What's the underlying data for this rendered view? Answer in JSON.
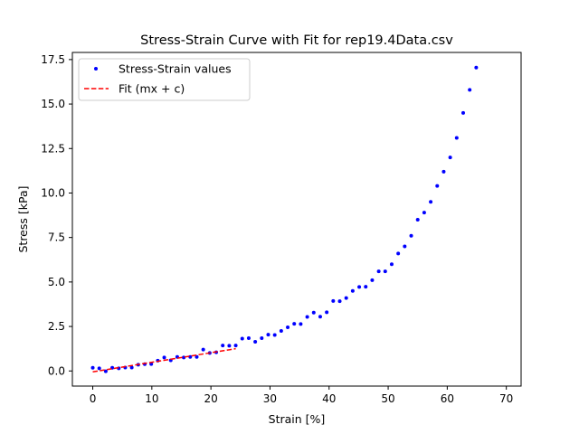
{
  "chart_data": {
    "type": "scatter",
    "title": "Stress-Strain Curve with Fit for rep19.4Data.csv",
    "xlabel": "Strain [%]",
    "ylabel": "Stress [kPa]",
    "xlim": [
      -3.45,
      72.5
    ],
    "ylim": [
      -0.85,
      17.9
    ],
    "x_ticks": [
      0,
      10,
      20,
      30,
      40,
      50,
      60,
      70
    ],
    "y_ticks": [
      0.0,
      2.5,
      5.0,
      7.5,
      10.0,
      12.5,
      15.0,
      17.5
    ],
    "x_tick_labels": [
      "0",
      "10",
      "20",
      "30",
      "40",
      "50",
      "60",
      "70"
    ],
    "y_tick_labels": [
      "0.0",
      "2.5",
      "5.0",
      "7.5",
      "10.0",
      "12.5",
      "15.0",
      "17.5"
    ],
    "grid": false,
    "legend_position": "top-left",
    "series": [
      {
        "name": "Stress-Strain values",
        "style": "points",
        "color": "#0000ff",
        "points": [
          [
            0.0,
            0.18
          ],
          [
            1.1,
            0.15
          ],
          [
            2.2,
            -0.02
          ],
          [
            3.3,
            0.18
          ],
          [
            4.4,
            0.15
          ],
          [
            5.5,
            0.19
          ],
          [
            6.6,
            0.19
          ],
          [
            7.7,
            0.35
          ],
          [
            8.8,
            0.38
          ],
          [
            9.9,
            0.39
          ],
          [
            11.0,
            0.58
          ],
          [
            12.1,
            0.76
          ],
          [
            13.2,
            0.6
          ],
          [
            14.3,
            0.79
          ],
          [
            15.4,
            0.76
          ],
          [
            16.5,
            0.79
          ],
          [
            17.6,
            0.79
          ],
          [
            18.7,
            1.2
          ],
          [
            19.8,
            1.01
          ],
          [
            20.9,
            1.05
          ],
          [
            22.0,
            1.43
          ],
          [
            23.1,
            1.42
          ],
          [
            24.2,
            1.43
          ],
          [
            25.3,
            1.82
          ],
          [
            26.4,
            1.84
          ],
          [
            27.5,
            1.64
          ],
          [
            28.6,
            1.84
          ],
          [
            29.7,
            2.04
          ],
          [
            30.8,
            2.02
          ],
          [
            31.9,
            2.25
          ],
          [
            33.0,
            2.45
          ],
          [
            34.1,
            2.65
          ],
          [
            35.2,
            2.64
          ],
          [
            36.3,
            3.04
          ],
          [
            37.4,
            3.28
          ],
          [
            38.5,
            3.05
          ],
          [
            39.6,
            3.3
          ],
          [
            40.7,
            3.93
          ],
          [
            41.8,
            3.92
          ],
          [
            42.9,
            4.1
          ],
          [
            44.0,
            4.5
          ],
          [
            45.1,
            4.72
          ],
          [
            46.2,
            4.73
          ],
          [
            47.3,
            5.1
          ],
          [
            48.4,
            5.6
          ],
          [
            49.5,
            5.6
          ],
          [
            50.6,
            6.0
          ],
          [
            51.7,
            6.6
          ],
          [
            52.8,
            7.0
          ],
          [
            53.9,
            7.6
          ],
          [
            55.0,
            8.5
          ],
          [
            56.1,
            8.9
          ],
          [
            57.2,
            9.5
          ],
          [
            58.3,
            10.4
          ],
          [
            59.4,
            11.2
          ],
          [
            60.5,
            12.0
          ],
          [
            61.6,
            13.1
          ],
          [
            62.7,
            14.5
          ],
          [
            63.8,
            15.8
          ],
          [
            64.9,
            17.05
          ]
        ]
      },
      {
        "name": "Fit (mx + c)",
        "style": "dashed-line",
        "color": "#ff0000",
        "points": [
          [
            0.0,
            -0.05
          ],
          [
            24.2,
            1.25
          ]
        ]
      }
    ]
  }
}
